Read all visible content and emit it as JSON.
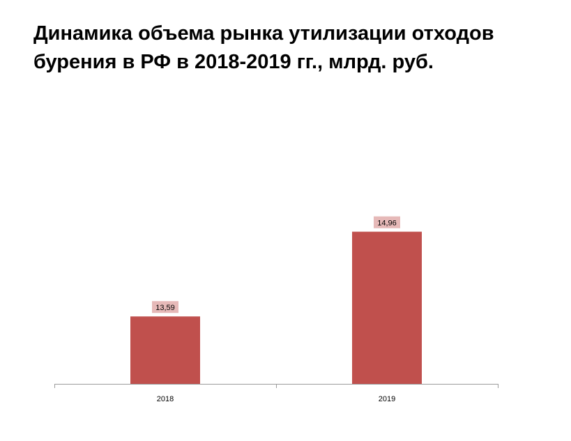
{
  "chart_data": {
    "type": "bar",
    "title_lines": [
      "Динамика объема рынка утилизации отходов",
      "бурения в РФ в 2018-2019 гг., млрд. руб."
    ],
    "categories": [
      "2018",
      "2019"
    ],
    "values": [
      13.59,
      14.96
    ],
    "data_labels": [
      "13,59",
      "14,96"
    ],
    "ylim": [
      12.5,
      15.8
    ],
    "grid": false,
    "legend": "none",
    "colors": {
      "bar": "#c0504d",
      "label_bg": "#e6b9b8",
      "axis": "#9b9b9b"
    }
  }
}
